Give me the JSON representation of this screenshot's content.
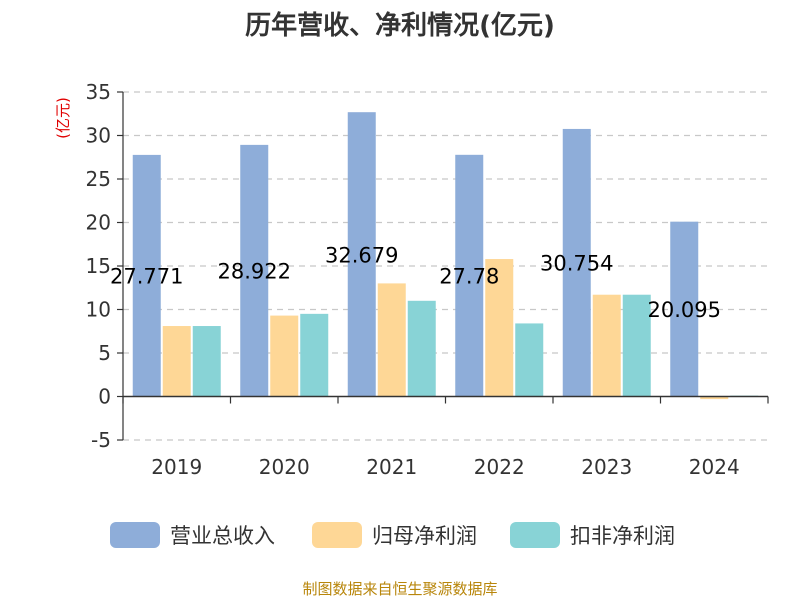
{
  "chart_data": {
    "type": "bar",
    "title": "历年营收、净利情况(亿元)",
    "ylabel": "(亿元)",
    "categories": [
      "2019",
      "2020",
      "2021",
      "2022",
      "2023",
      "2024"
    ],
    "series": [
      {
        "name": "营业总收入",
        "color": "#8eadd9",
        "values": [
          27.771,
          28.922,
          32.679,
          27.78,
          30.754,
          20.095
        ]
      },
      {
        "name": "归母净利润",
        "color": "#fed796",
        "values": [
          8.1,
          9.3,
          13.0,
          15.8,
          11.7,
          -0.3
        ]
      },
      {
        "name": "扣非净利润",
        "color": "#88d3d6",
        "values": [
          8.1,
          9.5,
          11.0,
          8.4,
          11.7,
          0.1
        ]
      }
    ],
    "data_labels": [
      "27.771",
      "28.922",
      "32.679",
      "27.78",
      "30.754",
      "20.095"
    ],
    "ylim": [
      -5,
      35
    ],
    "yticks": [
      -5,
      0,
      5,
      10,
      15,
      20,
      25,
      30,
      35
    ],
    "grid": true,
    "legend_position": "bottom"
  },
  "source": "制图数据来自恒生聚源数据库"
}
